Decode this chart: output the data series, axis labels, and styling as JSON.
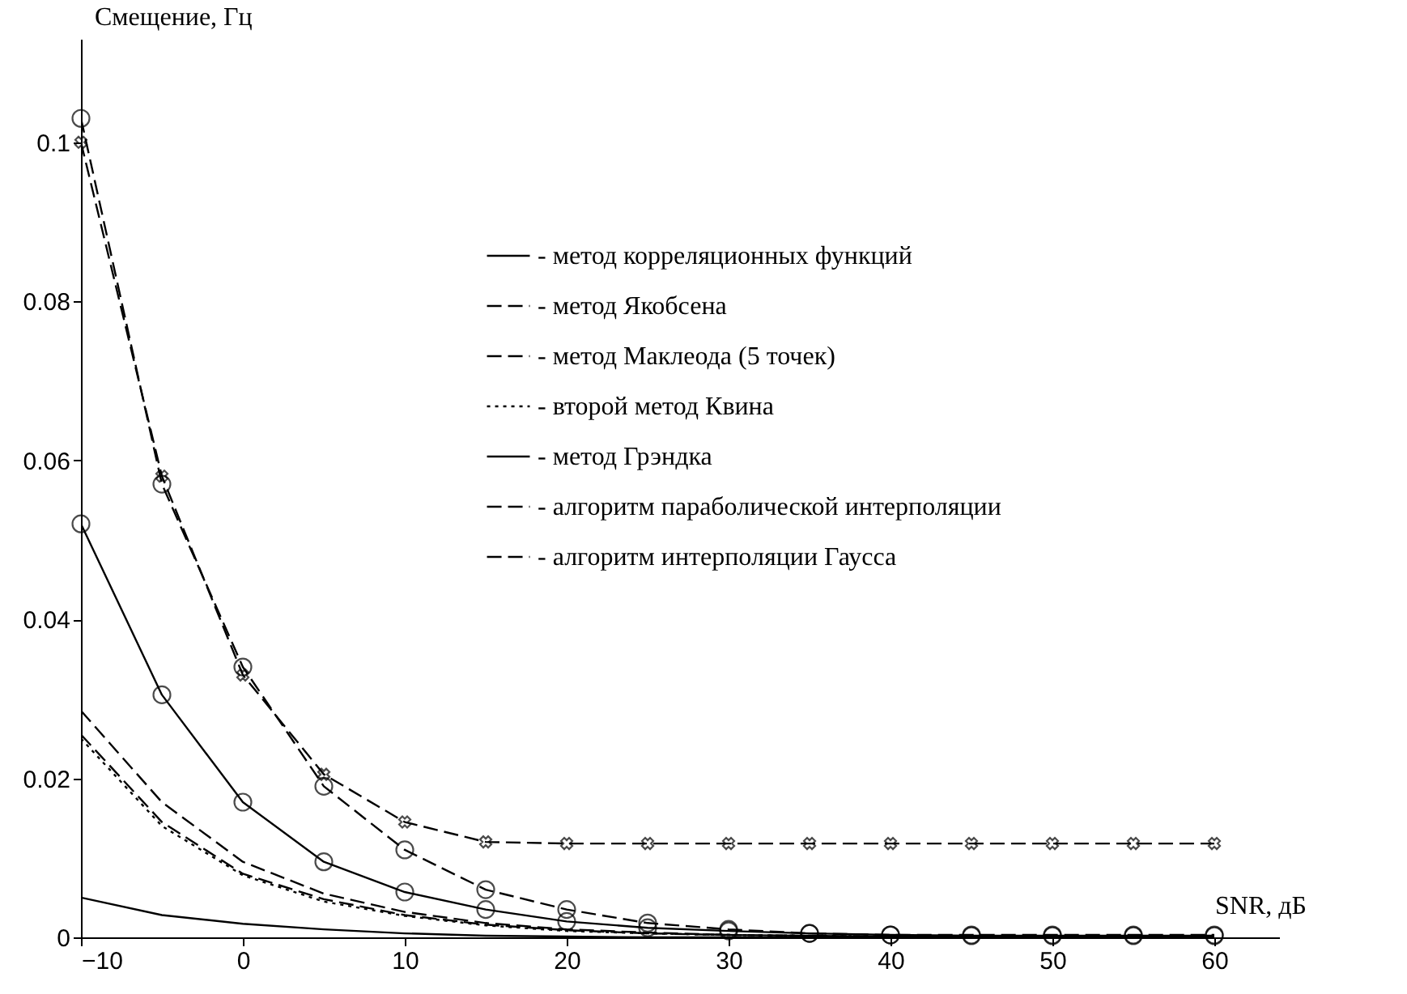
{
  "chart_data": {
    "type": "line",
    "xlabel": "SNR, дБ",
    "ylabel": "Смещение, Гц",
    "x": [
      -10,
      -5,
      0,
      5,
      10,
      15,
      20,
      25,
      30,
      35,
      40,
      45,
      50,
      55,
      60
    ],
    "xlim": [
      -10,
      64
    ],
    "xticks": [
      -10,
      0,
      10,
      20,
      30,
      40,
      50,
      60
    ],
    "ylim": [
      0,
      0.113
    ],
    "yticks": [
      0,
      0.02,
      0.04,
      0.06,
      0.08,
      0.1
    ],
    "grid": false,
    "legend": "top right",
    "series": [
      {
        "name": "- метод корреляционных функций",
        "color": "#000000",
        "line_style": "solid",
        "marker": "none",
        "values": [
          0.005,
          0.0028,
          0.0017,
          0.001,
          0.0005,
          0.0002,
          0.0001,
          0,
          0,
          0,
          0,
          0,
          0,
          0,
          0
        ]
      },
      {
        "name": "- метод Якобсена",
        "color": "#000000",
        "line_style": "dashed",
        "marker": "none",
        "values": [
          0.0285,
          0.017,
          0.0095,
          0.0055,
          0.0032,
          0.0018,
          0.001,
          0.0006,
          0.0003,
          0.0002,
          0.0001,
          0.0001,
          0.0001,
          0.0001,
          0.0001
        ]
      },
      {
        "name": "- метод Маклеода (5 точек)",
        "color": "#000000",
        "line_style": "dashed",
        "marker": "none",
        "values": [
          0.0255,
          0.0145,
          0.008,
          0.0048,
          0.0028,
          0.0016,
          0.0009,
          0.0005,
          0.0003,
          0.0002,
          0.0001,
          0.0001,
          0.0001,
          0.0001,
          0.0001
        ]
      },
      {
        "name": "- второй метод Квина",
        "color": "#000000",
        "line_style": "dotted",
        "marker": "none",
        "values": [
          0.025,
          0.014,
          0.0078,
          0.0045,
          0.0027,
          0.0015,
          0.0008,
          0.0005,
          0.0003,
          0.0002,
          0.0001,
          0.0001,
          0.0001,
          0.0001,
          0.0001
        ]
      },
      {
        "name": "- метод Грэндка",
        "color": "#000000",
        "line_style": "solid",
        "marker": "circle",
        "values": [
          0.052,
          0.0305,
          0.017,
          0.0095,
          0.0057,
          0.0035,
          0.002,
          0.0012,
          0.0008,
          0.0005,
          0.0003,
          0.0002,
          0.0002,
          0.0002,
          0.0002
        ]
      },
      {
        "name": "- алгоритм параболической интерполяции",
        "color": "#000000",
        "line_style": "dashed",
        "marker": "cross",
        "values": [
          0.1,
          0.058,
          0.033,
          0.0205,
          0.0145,
          0.012,
          0.0118,
          0.0118,
          0.0118,
          0.0118,
          0.0118,
          0.0118,
          0.0118,
          0.0118,
          0.0118
        ]
      },
      {
        "name": "- алгоритм интерполяции Гаусса",
        "color": "#000000",
        "line_style": "dashed",
        "marker": "circle",
        "values": [
          0.103,
          0.057,
          0.034,
          0.019,
          0.011,
          0.006,
          0.0035,
          0.0018,
          0.001,
          0.0005,
          0.0003,
          0.0003,
          0.0003,
          0.0003,
          0.0003
        ]
      }
    ]
  }
}
